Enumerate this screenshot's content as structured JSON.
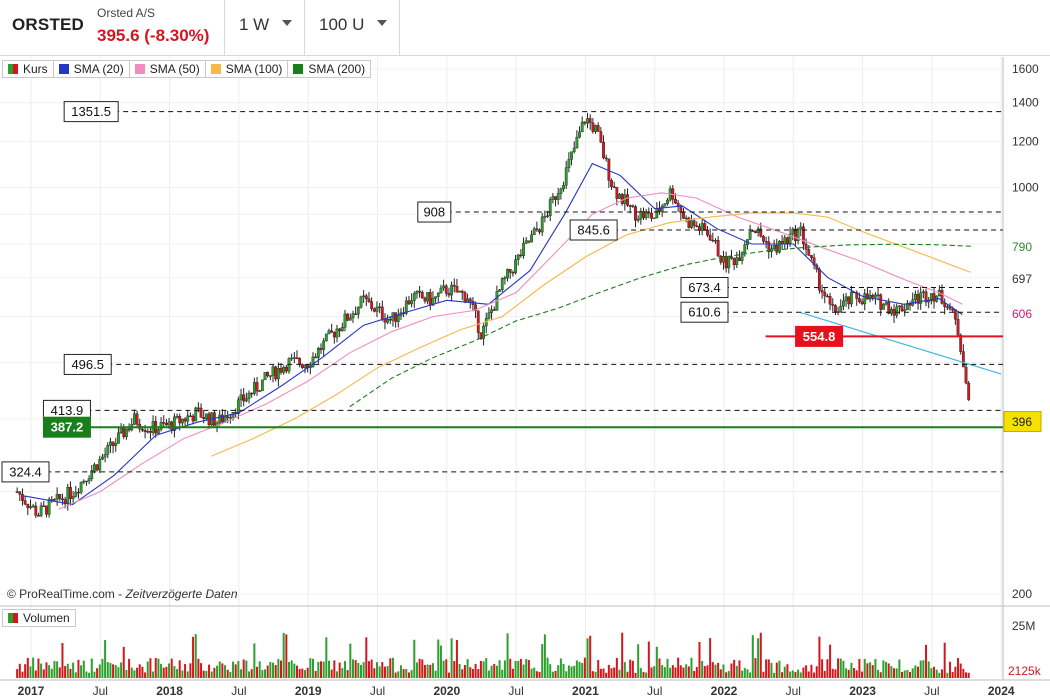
{
  "header": {
    "ticker": "ORSTED",
    "name": "Orsted A/S",
    "price": "395.6 (-8.30%)",
    "interval": "1 W",
    "units": "100 U"
  },
  "legend": [
    {
      "label": "Kurs",
      "color": "#d4161e",
      "color2": "#2ca02c"
    },
    {
      "label": "SMA (20)",
      "color": "#2436c4"
    },
    {
      "label": "SMA (50)",
      "color": "#f28bc1"
    },
    {
      "label": "SMA (100)",
      "color": "#f5b94a"
    },
    {
      "label": "SMA (200)",
      "color": "#1a7f1a"
    }
  ],
  "volume_legend": {
    "label": "Volumen"
  },
  "watermark": {
    "source": "© ProRealTime.com",
    "delay": "Zeitverzögerte Daten"
  },
  "colors": {
    "up": "#2ca02c",
    "down": "#d4161e",
    "accent_red": "#e8101c",
    "accent_green": "#1a7f1a",
    "last_price": "#f5e000"
  },
  "chart_data": {
    "type": "candlestick",
    "y_scale": "log",
    "ylim": [
      200,
      1600
    ],
    "y_ticks": [
      1600,
      1400,
      1200,
      1000,
      200
    ],
    "y_highlighted": [
      {
        "value": 790,
        "label": "790",
        "color": "#2a8a2a"
      },
      {
        "value": 697,
        "label": "697",
        "color": "#333333"
      },
      {
        "value": 606,
        "label": "606",
        "color": "#c81a7a"
      },
      {
        "value": 396,
        "label": "396",
        "color": "#f5e000"
      }
    ],
    "x_ticks": [
      {
        "t": 2017.0,
        "label": "2017",
        "bold": true
      },
      {
        "t": 2017.5,
        "label": "Jul",
        "bold": false
      },
      {
        "t": 2018.0,
        "label": "2018",
        "bold": true
      },
      {
        "t": 2018.5,
        "label": "Jul",
        "bold": false
      },
      {
        "t": 2019.0,
        "label": "2019",
        "bold": true
      },
      {
        "t": 2019.5,
        "label": "Jul",
        "bold": false
      },
      {
        "t": 2020.0,
        "label": "2020",
        "bold": true
      },
      {
        "t": 2020.5,
        "label": "Jul",
        "bold": false
      },
      {
        "t": 2021.0,
        "label": "2021",
        "bold": true
      },
      {
        "t": 2021.5,
        "label": "Jul",
        "bold": false
      },
      {
        "t": 2022.0,
        "label": "2022",
        "bold": true
      },
      {
        "t": 2022.5,
        "label": "Jul",
        "bold": false
      },
      {
        "t": 2023.0,
        "label": "2023",
        "bold": true
      },
      {
        "t": 2023.5,
        "label": "Jul",
        "bold": false
      },
      {
        "t": 2024.0,
        "label": "2024",
        "bold": true
      }
    ],
    "price_path": [
      [
        2016.9,
        300
      ],
      [
        2017.05,
        275
      ],
      [
        2017.15,
        285
      ],
      [
        2017.3,
        300
      ],
      [
        2017.5,
        340
      ],
      [
        2017.75,
        400
      ],
      [
        2017.85,
        385
      ],
      [
        2018.0,
        390
      ],
      [
        2018.2,
        410
      ],
      [
        2018.35,
        395
      ],
      [
        2018.5,
        425
      ],
      [
        2018.7,
        470
      ],
      [
        2018.85,
        500
      ],
      [
        2019.0,
        500
      ],
      [
        2019.2,
        570
      ],
      [
        2019.4,
        640
      ],
      [
        2019.6,
        590
      ],
      [
        2019.75,
        650
      ],
      [
        2019.9,
        640
      ],
      [
        2020.0,
        670
      ],
      [
        2020.15,
        650
      ],
      [
        2020.25,
        560
      ],
      [
        2020.4,
        680
      ],
      [
        2020.55,
        780
      ],
      [
        2020.7,
        880
      ],
      [
        2020.85,
        1050
      ],
      [
        2021.0,
        1320
      ],
      [
        2021.08,
        1250
      ],
      [
        2021.2,
        1000
      ],
      [
        2021.35,
        905
      ],
      [
        2021.5,
        890
      ],
      [
        2021.62,
        990
      ],
      [
        2021.72,
        880
      ],
      [
        2021.9,
        830
      ],
      [
        2022.0,
        740
      ],
      [
        2022.1,
        760
      ],
      [
        2022.2,
        860
      ],
      [
        2022.35,
        780
      ],
      [
        2022.55,
        845
      ],
      [
        2022.65,
        720
      ],
      [
        2022.78,
        610
      ],
      [
        2022.95,
        650
      ],
      [
        2023.1,
        640
      ],
      [
        2023.25,
        615
      ],
      [
        2023.35,
        640
      ],
      [
        2023.5,
        660
      ],
      [
        2023.6,
        640
      ],
      [
        2023.68,
        580
      ],
      [
        2023.73,
        500
      ],
      [
        2023.78,
        396
      ]
    ],
    "series": [
      {
        "name": "SMA (20)",
        "color": "#2436c4",
        "dash": "",
        "points": [
          [
            2016.95,
            295
          ],
          [
            2017.3,
            285
          ],
          [
            2017.6,
            320
          ],
          [
            2017.9,
            375
          ],
          [
            2018.2,
            395
          ],
          [
            2018.5,
            410
          ],
          [
            2018.8,
            455
          ],
          [
            2019.1,
            510
          ],
          [
            2019.4,
            580
          ],
          [
            2019.7,
            610
          ],
          [
            2020.0,
            640
          ],
          [
            2020.3,
            630
          ],
          [
            2020.6,
            720
          ],
          [
            2020.85,
            900
          ],
          [
            2021.05,
            1100
          ],
          [
            2021.25,
            1050
          ],
          [
            2021.5,
            920
          ],
          [
            2021.7,
            930
          ],
          [
            2021.95,
            850
          ],
          [
            2022.2,
            800
          ],
          [
            2022.5,
            800
          ],
          [
            2022.75,
            700
          ],
          [
            2023.0,
            650
          ],
          [
            2023.3,
            630
          ],
          [
            2023.55,
            645
          ],
          [
            2023.72,
            605
          ]
        ]
      },
      {
        "name": "SMA (50)",
        "color": "#f28bc1",
        "dash": "",
        "points": [
          [
            2017.2,
            280
          ],
          [
            2017.5,
            300
          ],
          [
            2017.8,
            335
          ],
          [
            2018.1,
            370
          ],
          [
            2018.4,
            395
          ],
          [
            2018.7,
            425
          ],
          [
            2019.0,
            465
          ],
          [
            2019.3,
            520
          ],
          [
            2019.6,
            565
          ],
          [
            2019.9,
            600
          ],
          [
            2020.2,
            615
          ],
          [
            2020.5,
            660
          ],
          [
            2020.8,
            780
          ],
          [
            2021.05,
            900
          ],
          [
            2021.3,
            960
          ],
          [
            2021.55,
            980
          ],
          [
            2021.8,
            960
          ],
          [
            2022.1,
            890
          ],
          [
            2022.4,
            840
          ],
          [
            2022.7,
            790
          ],
          [
            2023.0,
            745
          ],
          [
            2023.3,
            695
          ],
          [
            2023.55,
            660
          ],
          [
            2023.72,
            630
          ]
        ]
      },
      {
        "name": "SMA (100)",
        "color": "#f5b94a",
        "dash": "",
        "points": [
          [
            2018.3,
            345
          ],
          [
            2018.6,
            370
          ],
          [
            2018.9,
            400
          ],
          [
            2019.2,
            440
          ],
          [
            2019.5,
            490
          ],
          [
            2019.8,
            530
          ],
          [
            2020.1,
            570
          ],
          [
            2020.4,
            600
          ],
          [
            2020.7,
            680
          ],
          [
            2021.0,
            760
          ],
          [
            2021.3,
            830
          ],
          [
            2021.6,
            870
          ],
          [
            2021.9,
            890
          ],
          [
            2022.2,
            905
          ],
          [
            2022.5,
            905
          ],
          [
            2022.75,
            890
          ],
          [
            2023.0,
            840
          ],
          [
            2023.3,
            790
          ],
          [
            2023.55,
            750
          ],
          [
            2023.78,
            715
          ]
        ]
      },
      {
        "name": "SMA (200)",
        "color": "#1a7f1a",
        "dash": "5,3",
        "points": [
          [
            2019.3,
            420
          ],
          [
            2019.6,
            470
          ],
          [
            2019.9,
            510
          ],
          [
            2020.2,
            545
          ],
          [
            2020.5,
            590
          ],
          [
            2020.8,
            620
          ],
          [
            2021.1,
            660
          ],
          [
            2021.4,
            700
          ],
          [
            2021.7,
            735
          ],
          [
            2022.0,
            760
          ],
          [
            2022.3,
            778
          ],
          [
            2022.6,
            790
          ],
          [
            2022.9,
            797
          ],
          [
            2023.2,
            799
          ],
          [
            2023.5,
            798
          ],
          [
            2023.78,
            793
          ]
        ]
      }
    ],
    "trendline": {
      "color": "#3fb8e0",
      "points": [
        [
          2022.55,
          610
        ],
        [
          2024.0,
          478
        ]
      ]
    },
    "levels": [
      {
        "value": 1351.5,
        "label": "1351.5",
        "x_start": 2017.6,
        "style": "dashed",
        "color": "#111111",
        "box": "white"
      },
      {
        "value": 908,
        "label": "908",
        "x_start": 2020.0,
        "style": "dashed",
        "color": "#111111",
        "box": "white"
      },
      {
        "value": 845.6,
        "label": "845.6",
        "x_start": 2021.2,
        "style": "dashed",
        "color": "#111111",
        "box": "white"
      },
      {
        "value": 673.4,
        "label": "673.4",
        "x_start": 2022.0,
        "style": "dashed",
        "color": "#111111",
        "box": "white"
      },
      {
        "value": 610.6,
        "label": "610.6",
        "x_start": 2022.0,
        "style": "dashed",
        "color": "#111111",
        "box": "white"
      },
      {
        "value": 554.8,
        "label": "554.8",
        "x_start": 2022.3,
        "style": "solid",
        "color": "#e8101c",
        "box": "red"
      },
      {
        "value": 496.5,
        "label": "496.5",
        "x_start": 2017.55,
        "style": "dashed",
        "color": "#111111",
        "box": "white"
      },
      {
        "value": 413.9,
        "label": "413.9",
        "x_start": 2017.4,
        "style": "dashed",
        "color": "#111111",
        "box": "white"
      },
      {
        "value": 387.2,
        "label": "387.2",
        "x_start": 2017.4,
        "style": "solid",
        "color": "#1a7f1a",
        "box": "green"
      },
      {
        "value": 324.4,
        "label": "324.4",
        "x_start": 2016.85,
        "style": "dashed",
        "color": "#111111",
        "box": "white"
      }
    ],
    "volume": {
      "ylim": [
        0,
        25
      ],
      "y_ticks": [
        {
          "value": 25,
          "label": "25M"
        }
      ],
      "last_label": "2125k"
    }
  }
}
